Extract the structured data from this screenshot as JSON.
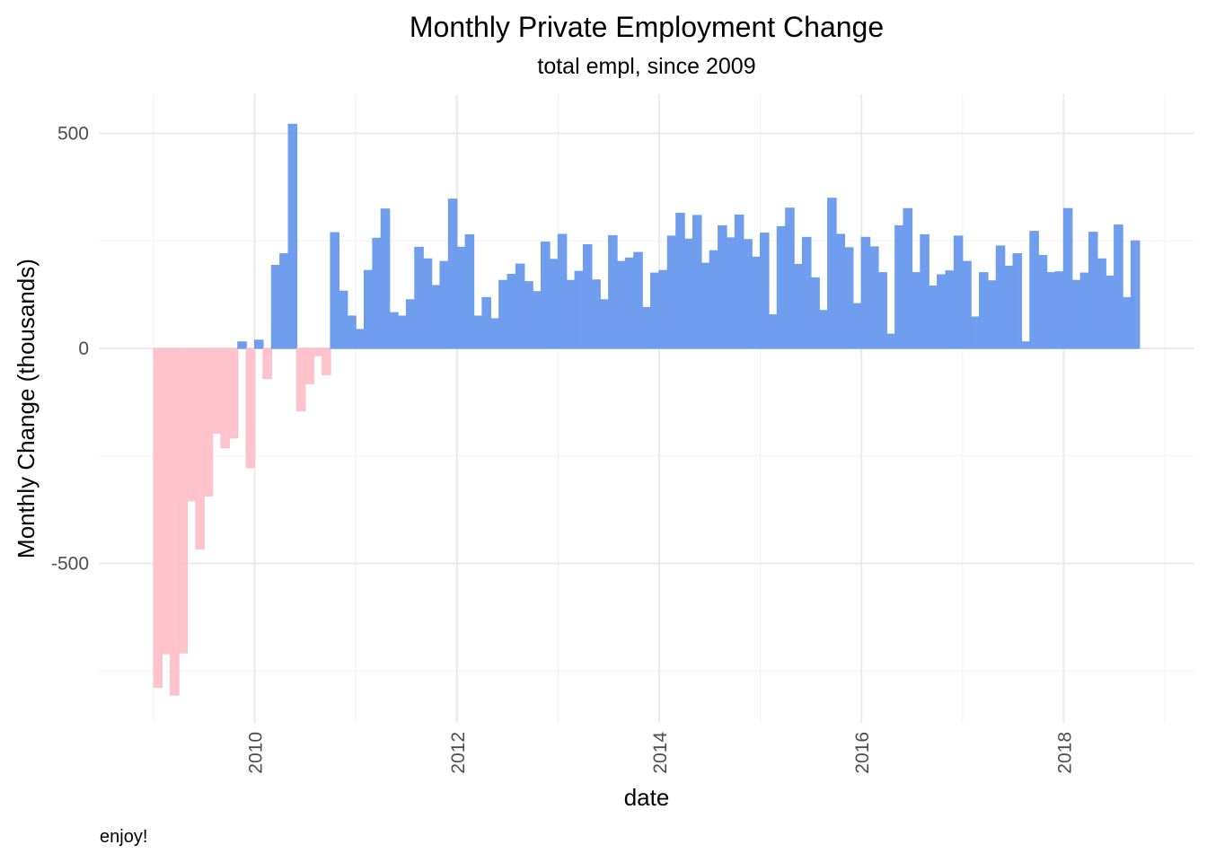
{
  "chart_data": {
    "type": "bar",
    "title": "Monthly Private Employment Change",
    "subtitle": "total empl, since 2009",
    "xlabel": "date",
    "ylabel": "Monthly Change (thousands)",
    "caption": "enjoy!",
    "x_start": "2009-01",
    "x_end": "2018-09",
    "x_ticks": [
      "2010",
      "2012",
      "2014",
      "2016",
      "2018"
    ],
    "xlim": [
      "2009-01",
      "2019-01"
    ],
    "y_ticks": [
      500,
      0,
      -500
    ],
    "ylim": [
      -800,
      500
    ],
    "grid": true,
    "colors": {
      "positive": "#6495ED",
      "negative": "#FFC0CB",
      "positive_outline": "#6e9eee"
    },
    "values": [
      -788,
      -710,
      -806,
      -708,
      -354,
      -466,
      -343,
      -197,
      -231,
      -208,
      15,
      -277,
      19,
      -70,
      193,
      220,
      521,
      -145,
      -82,
      -17,
      -61,
      269,
      133,
      75,
      44,
      181,
      256,
      324,
      83,
      75,
      113,
      235,
      208,
      146,
      202,
      347,
      235,
      264,
      75,
      118,
      69,
      158,
      172,
      196,
      155,
      132,
      247,
      207,
      265,
      158,
      179,
      241,
      159,
      113,
      262,
      202,
      210,
      223,
      95,
      175,
      181,
      261,
      314,
      254,
      309,
      198,
      227,
      285,
      257,
      310,
      253,
      212,
      268,
      78,
      283,
      326,
      195,
      258,
      164,
      88,
      349,
      265,
      234,
      104,
      258,
      236,
      176,
      33,
      285,
      325,
      176,
      264,
      145,
      171,
      180,
      261,
      202,
      73,
      176,
      157,
      238,
      191,
      220,
      15,
      272,
      216,
      176,
      178,
      325,
      158,
      175,
      270,
      208,
      168,
      287,
      118,
      250
    ]
  }
}
